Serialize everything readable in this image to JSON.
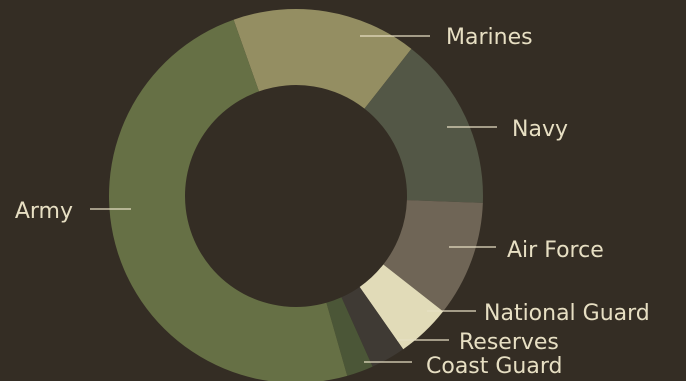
{
  "chart_data": {
    "type": "pie",
    "variant": "donut",
    "title": "",
    "values_unit": "percent (estimated from slice angles)",
    "slices": [
      {
        "label": "Marines",
        "value": 16.0,
        "color": "#948e62"
      },
      {
        "label": "Navy",
        "value": 15.0,
        "color": "#535746"
      },
      {
        "label": "Air Force",
        "value": 10.0,
        "color": "#6f6556"
      },
      {
        "label": "National Guard",
        "value": 4.7,
        "color": "#e1dbb8"
      },
      {
        "label": "Reserves",
        "value": 3.0,
        "color": "#3f3a34"
      },
      {
        "label": "Coast Guard",
        "value": 2.3,
        "color": "#4b5637"
      },
      {
        "label": "Army",
        "value": 49.0,
        "color": "#667045"
      }
    ],
    "legend": "none (leader-line labels)",
    "background_color": "#342d24",
    "label_color": "#e7dfc3"
  }
}
